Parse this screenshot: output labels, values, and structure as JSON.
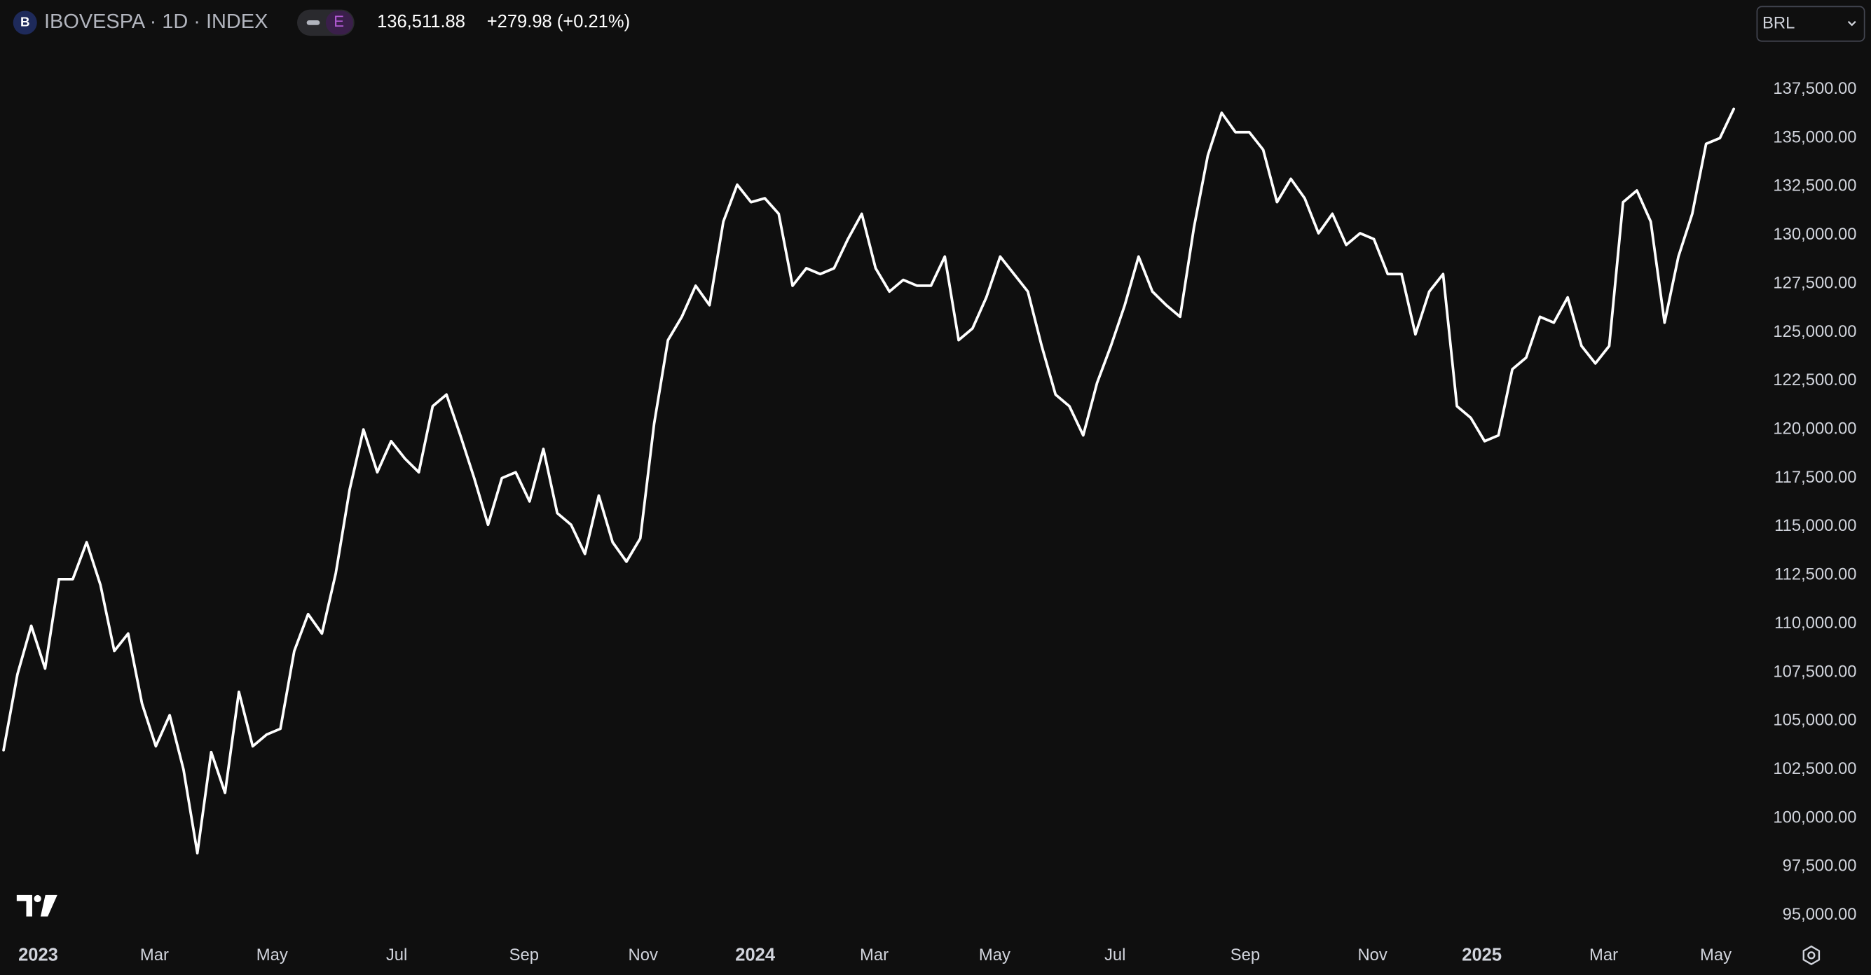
{
  "header": {
    "exchange_icon": "B",
    "title": "IBOVESPA · 1D · INDEX",
    "badge": "E",
    "price": "136,511.88",
    "change": "+279.98 (+0.21%)",
    "currency": "BRL"
  },
  "chart_data": {
    "type": "line",
    "color": "#ffffff",
    "grid": false,
    "values": [
      103500,
      107400,
      109900,
      107700,
      112300,
      112300,
      114200,
      112000,
      108600,
      109500,
      105900,
      103700,
      105300,
      102500,
      98200,
      103400,
      101300,
      106500,
      103700,
      104300,
      104600,
      108600,
      110500,
      109500,
      112600,
      116900,
      120000,
      117800,
      119400,
      118500,
      117800,
      121200,
      121800,
      119700,
      117500,
      115100,
      117500,
      117800,
      116300,
      119000,
      115700,
      115100,
      113600,
      116600,
      114200,
      113200,
      114400,
      120300,
      124600,
      125800,
      127400,
      126400,
      130700,
      132600,
      131700,
      131900,
      131100,
      127400,
      128300,
      128000,
      128300,
      129800,
      131100,
      128300,
      127100,
      127700,
      127400,
      127400,
      128900,
      124600,
      125200,
      126800,
      128900,
      128000,
      127100,
      124300,
      121800,
      121200,
      119700,
      122400,
      124300,
      126400,
      128900,
      127100,
      126400,
      125800,
      130400,
      134100,
      136300,
      135300,
      135300,
      134400,
      131700,
      132900,
      131900,
      130100,
      131100,
      129500,
      130100,
      129800,
      128000,
      128000,
      124900,
      127100,
      128000,
      121200,
      120600,
      119400,
      119700,
      123100,
      123700,
      125800,
      125500,
      126800,
      124300,
      123400,
      124300,
      131700,
      132300,
      130700,
      125500,
      128900,
      131100,
      134700,
      135000,
      136500
    ],
    "xlim": [
      0,
      125
    ],
    "xticks": [
      {
        "value": 2.5,
        "label": "2023"
      },
      {
        "value": 10.9,
        "label": "Mar"
      },
      {
        "value": 19.4,
        "label": "May"
      },
      {
        "value": 28.4,
        "label": "Jul"
      },
      {
        "value": 37.6,
        "label": "Sep"
      },
      {
        "value": 46.2,
        "label": "Nov"
      },
      {
        "value": 54.3,
        "label": "2024"
      },
      {
        "value": 62.9,
        "label": "Mar"
      },
      {
        "value": 71.6,
        "label": "May"
      },
      {
        "value": 80.3,
        "label": "Jul"
      },
      {
        "value": 89.7,
        "label": "Sep"
      },
      {
        "value": 98.9,
        "label": "Nov"
      },
      {
        "value": 106.8,
        "label": "2025"
      },
      {
        "value": 115.6,
        "label": "Mar"
      },
      {
        "value": 123.7,
        "label": "May"
      }
    ],
    "ylim": [
      93500,
      142000
    ],
    "yticks": [
      {
        "value": 95000,
        "label": "95,000.00"
      },
      {
        "value": 97500,
        "label": "97,500.00"
      },
      {
        "value": 100000,
        "label": "100,000.00"
      },
      {
        "value": 102500,
        "label": "102,500.00"
      },
      {
        "value": 105000,
        "label": "105,000.00"
      },
      {
        "value": 107500,
        "label": "107,500.00"
      },
      {
        "value": 110000,
        "label": "110,000.00"
      },
      {
        "value": 112500,
        "label": "112,500.00"
      },
      {
        "value": 115000,
        "label": "115,000.00"
      },
      {
        "value": 117500,
        "label": "117,500.00"
      },
      {
        "value": 120000,
        "label": "120,000.00"
      },
      {
        "value": 122500,
        "label": "122,500.00"
      },
      {
        "value": 125000,
        "label": "125,000.00"
      },
      {
        "value": 127500,
        "label": "127,500.00"
      },
      {
        "value": 130000,
        "label": "130,000.00"
      },
      {
        "value": 132500,
        "label": "132,500.00"
      },
      {
        "value": 135000,
        "label": "135,000.00"
      },
      {
        "value": 137500,
        "label": "137,500.00"
      }
    ]
  }
}
